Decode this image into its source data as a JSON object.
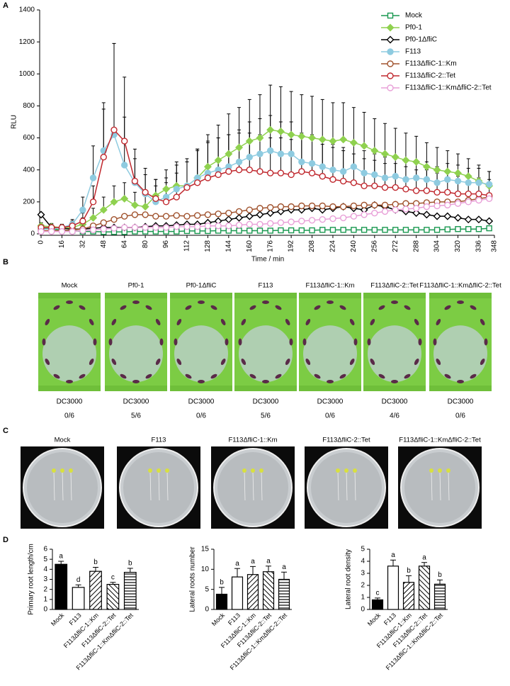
{
  "chart_data": [
    {
      "type": "line",
      "panel": "A",
      "xlabel": "Time / min",
      "ylabel": "RLU",
      "x": [
        0,
        8,
        16,
        24,
        32,
        40,
        48,
        56,
        64,
        72,
        80,
        88,
        96,
        104,
        112,
        120,
        128,
        136,
        144,
        152,
        160,
        168,
        176,
        184,
        192,
        200,
        208,
        216,
        224,
        232,
        240,
        248,
        256,
        264,
        272,
        280,
        288,
        296,
        304,
        312,
        320,
        328,
        336,
        344
      ],
      "xlim": [
        0,
        348
      ],
      "xticks": [
        0,
        16,
        32,
        48,
        64,
        80,
        96,
        112,
        128,
        144,
        160,
        176,
        192,
        208,
        224,
        240,
        256,
        272,
        288,
        304,
        320,
        336,
        348
      ],
      "ylim": [
        0,
        1400
      ],
      "yticks": [
        0,
        200,
        400,
        600,
        800,
        1000,
        1200,
        1400
      ],
      "grid": false,
      "legend": "top-right",
      "series": [
        {
          "name": "Mock",
          "color": "#1a9850",
          "marker": "square",
          "filled": false,
          "values": [
            40,
            30,
            25,
            20,
            15,
            15,
            12,
            12,
            12,
            15,
            15,
            15,
            15,
            15,
            18,
            18,
            18,
            20,
            20,
            20,
            20,
            20,
            20,
            22,
            22,
            22,
            22,
            25,
            25,
            25,
            25,
            25,
            25,
            25,
            25,
            25,
            25,
            25,
            25,
            28,
            30,
            30,
            30,
            35
          ]
        },
        {
          "name": "Pf0-1",
          "color": "#8fd14f",
          "marker": "diamond",
          "filled": true,
          "values": [
            50,
            45,
            40,
            40,
            60,
            100,
            150,
            200,
            220,
            180,
            170,
            240,
            280,
            300,
            300,
            350,
            420,
            460,
            500,
            540,
            580,
            600,
            650,
            640,
            620,
            610,
            600,
            590,
            580,
            590,
            570,
            550,
            520,
            500,
            480,
            460,
            450,
            420,
            400,
            390,
            380,
            360,
            330,
            300
          ],
          "errors": [
            20,
            20,
            20,
            20,
            40,
            60,
            80,
            100,
            100,
            80,
            80,
            100,
            120,
            150,
            150,
            180,
            200,
            220,
            250,
            250,
            260,
            270,
            280,
            280,
            270,
            260,
            260,
            250,
            240,
            230,
            220,
            210,
            200,
            190,
            180,
            170,
            160,
            150,
            140,
            130,
            120,
            110,
            100,
            90
          ]
        },
        {
          "name": "Pf0-1ΔfliC",
          "color": "#000000",
          "marker": "diamond",
          "filled": false,
          "values": [
            120,
            40,
            35,
            30,
            30,
            35,
            40,
            40,
            40,
            40,
            45,
            50,
            50,
            55,
            60,
            60,
            70,
            80,
            90,
            100,
            110,
            120,
            130,
            140,
            150,
            150,
            160,
            150,
            160,
            170,
            160,
            150,
            180,
            170,
            150,
            140,
            130,
            120,
            110,
            110,
            100,
            90,
            90,
            80
          ]
        },
        {
          "name": "F113",
          "color": "#8ecbe0",
          "marker": "circle",
          "filled": true,
          "values": [
            30,
            30,
            40,
            60,
            150,
            350,
            520,
            620,
            430,
            320,
            250,
            200,
            230,
            280,
            300,
            350,
            380,
            400,
            420,
            450,
            480,
            500,
            520,
            500,
            500,
            450,
            440,
            420,
            400,
            390,
            420,
            380,
            370,
            350,
            360,
            340,
            350,
            340,
            320,
            340,
            330,
            320,
            320,
            310
          ],
          "errors": [
            20,
            20,
            20,
            30,
            80,
            200,
            300,
            570,
            300,
            150,
            120,
            100,
            120,
            150,
            150,
            180,
            200,
            200,
            200,
            200,
            220,
            220,
            220,
            200,
            200,
            180,
            180,
            170,
            160,
            150,
            150,
            140,
            130,
            130,
            120,
            120,
            110,
            110,
            100,
            100,
            100,
            90,
            90,
            80
          ]
        },
        {
          "name": "F113ΔfliC-1::Km",
          "color": "#a0522d",
          "marker": "circle",
          "filled": false,
          "values": [
            20,
            20,
            20,
            25,
            30,
            50,
            70,
            90,
            110,
            120,
            120,
            110,
            110,
            115,
            110,
            115,
            120,
            125,
            130,
            140,
            150,
            160,
            165,
            170,
            170,
            175,
            175,
            175,
            170,
            170,
            175,
            180,
            180,
            180,
            185,
            190,
            190,
            195,
            200,
            200,
            200,
            210,
            220,
            230
          ]
        },
        {
          "name": "F113ΔfliC-2::Tet",
          "color": "#c0282e",
          "marker": "circle",
          "filled": false,
          "values": [
            40,
            40,
            40,
            50,
            80,
            200,
            480,
            650,
            580,
            330,
            260,
            220,
            200,
            230,
            290,
            320,
            350,
            370,
            390,
            400,
            400,
            390,
            380,
            380,
            370,
            390,
            380,
            360,
            340,
            330,
            320,
            300,
            300,
            290,
            290,
            280,
            270,
            270,
            260,
            260,
            250,
            250,
            250,
            240
          ],
          "errors": [
            20,
            20,
            20,
            30,
            50,
            100,
            300,
            540,
            400,
            200,
            150,
            120,
            120,
            150,
            180,
            200,
            220,
            230,
            230,
            230,
            230,
            230,
            220,
            220,
            220,
            220,
            210,
            200,
            200,
            190,
            180,
            170,
            160,
            150,
            150,
            140,
            130,
            130,
            120,
            120,
            110,
            100,
            100,
            100
          ]
        },
        {
          "name": "F113ΔfliC-1::KmΔfliC-2::Tet",
          "color": "#e8a0d8",
          "marker": "circle",
          "filled": false,
          "values": [
            15,
            15,
            15,
            15,
            20,
            25,
            30,
            35,
            40,
            40,
            40,
            40,
            40,
            45,
            45,
            45,
            50,
            50,
            50,
            55,
            60,
            60,
            65,
            70,
            75,
            80,
            85,
            90,
            95,
            100,
            110,
            120,
            130,
            140,
            150,
            155,
            160,
            170,
            175,
            180,
            190,
            200,
            210,
            220
          ]
        }
      ]
    },
    {
      "type": "bar",
      "panel": "D",
      "ylabel": "Primary root length/cm",
      "categories": [
        "Mock",
        "F113",
        "F113ΔfliC-1::Km",
        "F113ΔfliC-2::Tet",
        "F113ΔfliC-1::KmΔfliC-2::Tet"
      ],
      "values": [
        4.5,
        2.2,
        3.8,
        2.5,
        3.7
      ],
      "errors": [
        0.3,
        0.25,
        0.4,
        0.2,
        0.4
      ],
      "sig_labels": [
        "a",
        "d",
        "b",
        "c",
        "b"
      ],
      "patterns": [
        "solid",
        "open",
        "diagonal",
        "anti-diagonal",
        "horizontal"
      ],
      "ylim": [
        0,
        6
      ],
      "yticks": [
        0,
        1,
        2,
        3,
        4,
        5,
        6
      ]
    },
    {
      "type": "bar",
      "ylabel": "Lateral roots number",
      "categories": [
        "Mock",
        "F113",
        "F113ΔfliC-1::Km",
        "F113ΔfliC-2::Tet",
        "F113ΔfliC-1::KmΔfliC-2::Tet"
      ],
      "values": [
        3.8,
        8.1,
        8.7,
        9.4,
        7.5
      ],
      "errors": [
        1.7,
        2.1,
        2.0,
        1.4,
        1.8
      ],
      "sig_labels": [
        "b",
        "a",
        "a",
        "a",
        "a"
      ],
      "patterns": [
        "solid",
        "open",
        "diagonal",
        "anti-diagonal",
        "horizontal"
      ],
      "ylim": [
        0,
        15
      ],
      "yticks": [
        0,
        5,
        10,
        15
      ]
    },
    {
      "type": "bar",
      "ylabel": "Lateral root density",
      "categories": [
        "Mock",
        "F113",
        "F113ΔfliC-1::Km",
        "F113ΔfliC-2::Tet",
        "F113ΔfliC-1::KmΔfliC-2::Tet"
      ],
      "values": [
        0.8,
        3.6,
        2.25,
        3.6,
        2.1
      ],
      "errors": [
        0.15,
        0.5,
        0.55,
        0.3,
        0.35
      ],
      "sig_labels": [
        "c",
        "a",
        "b",
        "a",
        "b"
      ],
      "patterns": [
        "solid",
        "open",
        "diagonal",
        "anti-diagonal",
        "horizontal"
      ],
      "ylim": [
        0,
        5
      ],
      "yticks": [
        0,
        1,
        2,
        3,
        4,
        5
      ]
    }
  ],
  "leaf_assay": {
    "panel": "B",
    "items": [
      {
        "label": "Mock",
        "pathogen": "DC3000",
        "score": "0/6"
      },
      {
        "label": "Pf0-1",
        "pathogen": "DC3000",
        "score": "5/6"
      },
      {
        "label": "Pf0-1ΔfliC",
        "pathogen": "DC3000",
        "score": "0/6"
      },
      {
        "label": "F113",
        "pathogen": "DC3000",
        "score": "5/6"
      },
      {
        "label": "F113ΔfliC-1::Km",
        "pathogen": "DC3000",
        "score": "0/6"
      },
      {
        "label": "F113ΔfliC-2::Tet",
        "pathogen": "DC3000",
        "score": "4/6"
      },
      {
        "label": "F113ΔfliC-1::KmΔfliC-2::Tet",
        "pathogen": "DC3000",
        "score": "0/6"
      }
    ]
  },
  "plate_assay": {
    "panel": "C",
    "labels": [
      "Mock",
      "F113",
      "F113ΔfliC-1::Km",
      "F113ΔfliC-2::Tet",
      "F113ΔfliC-1::KmΔfliC-2::Tet"
    ]
  }
}
